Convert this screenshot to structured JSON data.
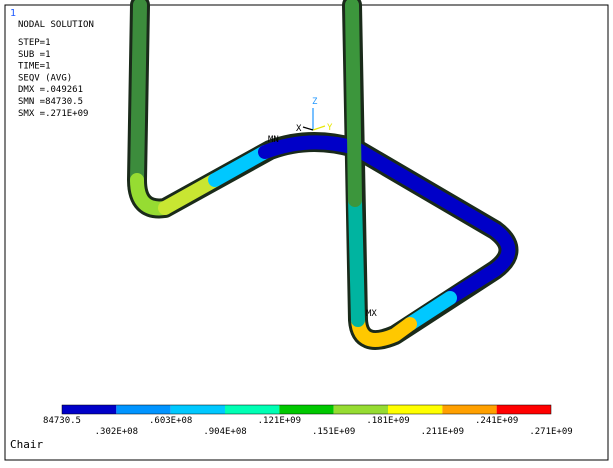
{
  "window_number": "1",
  "header": {
    "title": "NODAL SOLUTION",
    "lines": [
      "STEP=1",
      "SUB =1",
      "TIME=1",
      "SEQV      (AVG)",
      "DMX =.049261",
      "SMN =84730.5",
      "SMX =.271E+09"
    ]
  },
  "markers": {
    "max": "MX",
    "min": "MN"
  },
  "triad": {
    "z": "Z",
    "x": "X",
    "y": "Y"
  },
  "legend": {
    "colors": [
      "#0000c8",
      "#0094ff",
      "#00c8ff",
      "#00ffb4",
      "#00c800",
      "#96dc32",
      "#ffff00",
      "#ffa000",
      "#ff0000"
    ],
    "labels": [
      "84730.5",
      ".302E+08",
      ".603E+08",
      ".904E+08",
      ".121E+09",
      ".151E+09",
      ".181E+09",
      ".211E+09",
      ".241E+09",
      ".271E+09"
    ]
  },
  "footer": "Chair"
}
